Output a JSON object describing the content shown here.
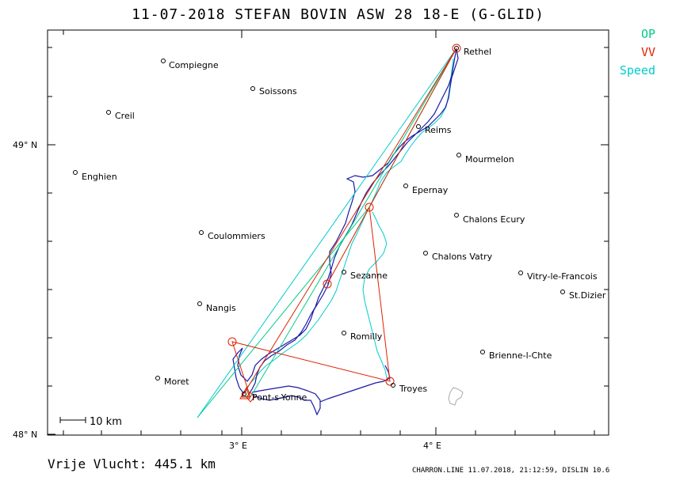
{
  "title": "11-07-2018   STEFAN BOVIN   ASW 28 18-E (G-GLID)",
  "legend": [
    {
      "label": "OP",
      "color": "#00cc88"
    },
    {
      "label": "VV",
      "color": "#dd2200"
    },
    {
      "label": "Speed",
      "color": "#00cccc"
    }
  ],
  "axes": {
    "y_labels": [
      "49° N",
      "48° N"
    ],
    "x_labels": [
      "3° E",
      "4° E"
    ]
  },
  "scale_bar": "10 km",
  "cities": [
    {
      "name": "Rethel"
    },
    {
      "name": "Compiegne"
    },
    {
      "name": "Soissons"
    },
    {
      "name": "Creil"
    },
    {
      "name": "Reims"
    },
    {
      "name": "Mourmelon"
    },
    {
      "name": "Enghien"
    },
    {
      "name": "Epernay"
    },
    {
      "name": "Chalons Ecury"
    },
    {
      "name": "Coulommiers"
    },
    {
      "name": "Chalons Vatry"
    },
    {
      "name": "Sezanne"
    },
    {
      "name": "Vitry-le-Francois"
    },
    {
      "name": "St.Dizier"
    },
    {
      "name": "Nangis"
    },
    {
      "name": "Romilly"
    },
    {
      "name": "Brienne-l-Chte"
    },
    {
      "name": "Moret"
    },
    {
      "name": "Pont-s-Yonne"
    },
    {
      "name": "Troyes"
    }
  ],
  "footer": {
    "distance": "Vrije Vlucht:  445.1 km",
    "info": "CHARRON.LINE 11.07.2018, 21:12:59, DISLIN 10.6"
  },
  "colors": {
    "track": "#1a1aa8",
    "op": "#00cc88",
    "vv": "#dd2200",
    "speed": "#00cccc",
    "frame": "#000000"
  }
}
